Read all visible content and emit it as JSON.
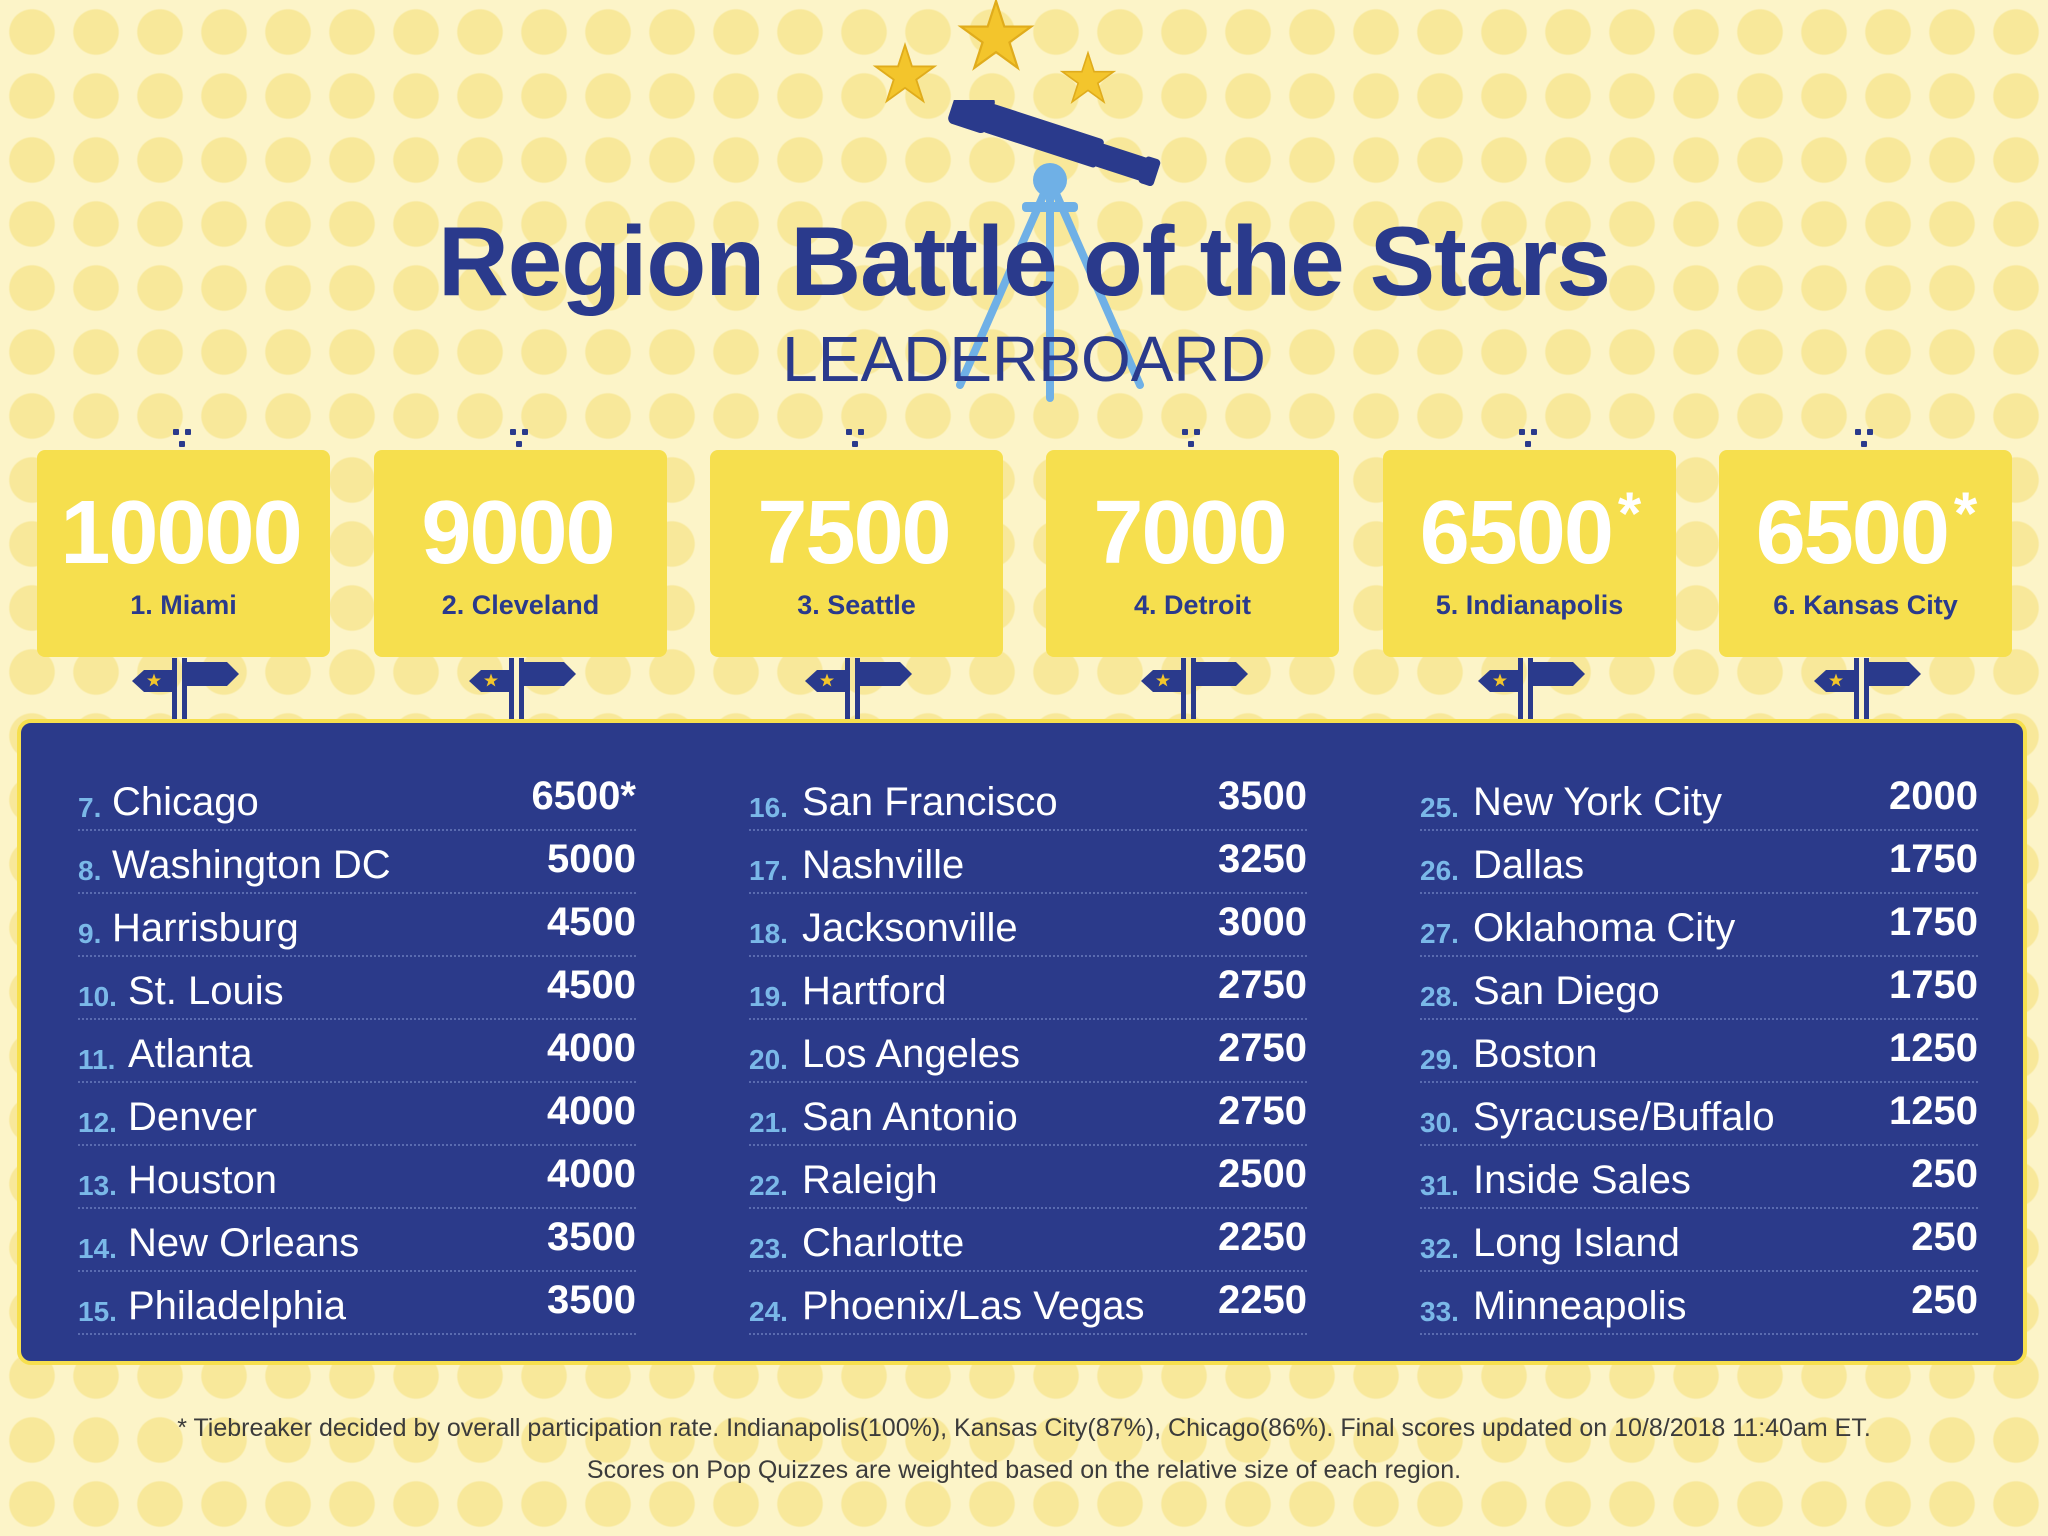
{
  "title": "Region Battle of the Stars",
  "subtitle": "LEADERBOARD",
  "colors": {
    "navy": "#2a3a8c",
    "yellow": "#f6df4e",
    "light_blue": "#7ab8e8",
    "background": "#fcf4c8"
  },
  "top_six": [
    {
      "score": "10000",
      "asterisk": "",
      "label": "1. Miami"
    },
    {
      "score": "9000",
      "asterisk": "",
      "label": "2. Cleveland"
    },
    {
      "score": "7500",
      "asterisk": "",
      "label": "3. Seattle"
    },
    {
      "score": "7000",
      "asterisk": "",
      "label": "4. Detroit"
    },
    {
      "score": "6500",
      "asterisk": "*",
      "label": "5. Indianapolis"
    },
    {
      "score": "6500",
      "asterisk": "*",
      "label": "6. Kansas City"
    }
  ],
  "leaderboard": [
    {
      "rank": "7.",
      "city": "Chicago",
      "score": "6500*"
    },
    {
      "rank": "8.",
      "city": "Washington DC",
      "score": "5000"
    },
    {
      "rank": "9.",
      "city": "Harrisburg",
      "score": "4500"
    },
    {
      "rank": "10.",
      "city": "St. Louis",
      "score": "4500"
    },
    {
      "rank": "11.",
      "city": "Atlanta",
      "score": "4000"
    },
    {
      "rank": "12.",
      "city": "Denver",
      "score": "4000"
    },
    {
      "rank": "13.",
      "city": "Houston",
      "score": "4000"
    },
    {
      "rank": "14.",
      "city": "New Orleans",
      "score": "3500"
    },
    {
      "rank": "15.",
      "city": "Philadelphia",
      "score": "3500"
    },
    {
      "rank": "16.",
      "city": "San Francisco",
      "score": "3500"
    },
    {
      "rank": "17.",
      "city": "Nashville",
      "score": "3250"
    },
    {
      "rank": "18.",
      "city": "Jacksonville",
      "score": "3000"
    },
    {
      "rank": "19.",
      "city": "Hartford",
      "score": "2750"
    },
    {
      "rank": "20.",
      "city": "Los Angeles",
      "score": "2750"
    },
    {
      "rank": "21.",
      "city": "San Antonio",
      "score": "2750"
    },
    {
      "rank": "22.",
      "city": "Raleigh",
      "score": "2500"
    },
    {
      "rank": "23.",
      "city": "Charlotte",
      "score": "2250"
    },
    {
      "rank": "24.",
      "city": "Phoenix/Las Vegas",
      "score": "2250"
    },
    {
      "rank": "25.",
      "city": "New York City",
      "score": "2000"
    },
    {
      "rank": "26.",
      "city": "Dallas",
      "score": "1750"
    },
    {
      "rank": "27.",
      "city": "Oklahoma City",
      "score": "1750"
    },
    {
      "rank": "28.",
      "city": "San Diego",
      "score": "1750"
    },
    {
      "rank": "29.",
      "city": "Boston",
      "score": "1250"
    },
    {
      "rank": "30.",
      "city": "Syracuse/Buffalo",
      "score": "1250"
    },
    {
      "rank": "31.",
      "city": "Inside Sales",
      "score": "250"
    },
    {
      "rank": "32.",
      "city": "Long Island",
      "score": "250"
    },
    {
      "rank": "33.",
      "city": "Minneapolis",
      "score": "250"
    }
  ],
  "footnote": {
    "line1": "* Tiebreaker decided by overall participation rate. Indianapolis(100%), Kansas City(87%), Chicago(86%). Final scores updated on 10/8/2018 11:40am ET.",
    "line2": "Scores on Pop Quizzes are weighted based on the relative size of each region."
  }
}
